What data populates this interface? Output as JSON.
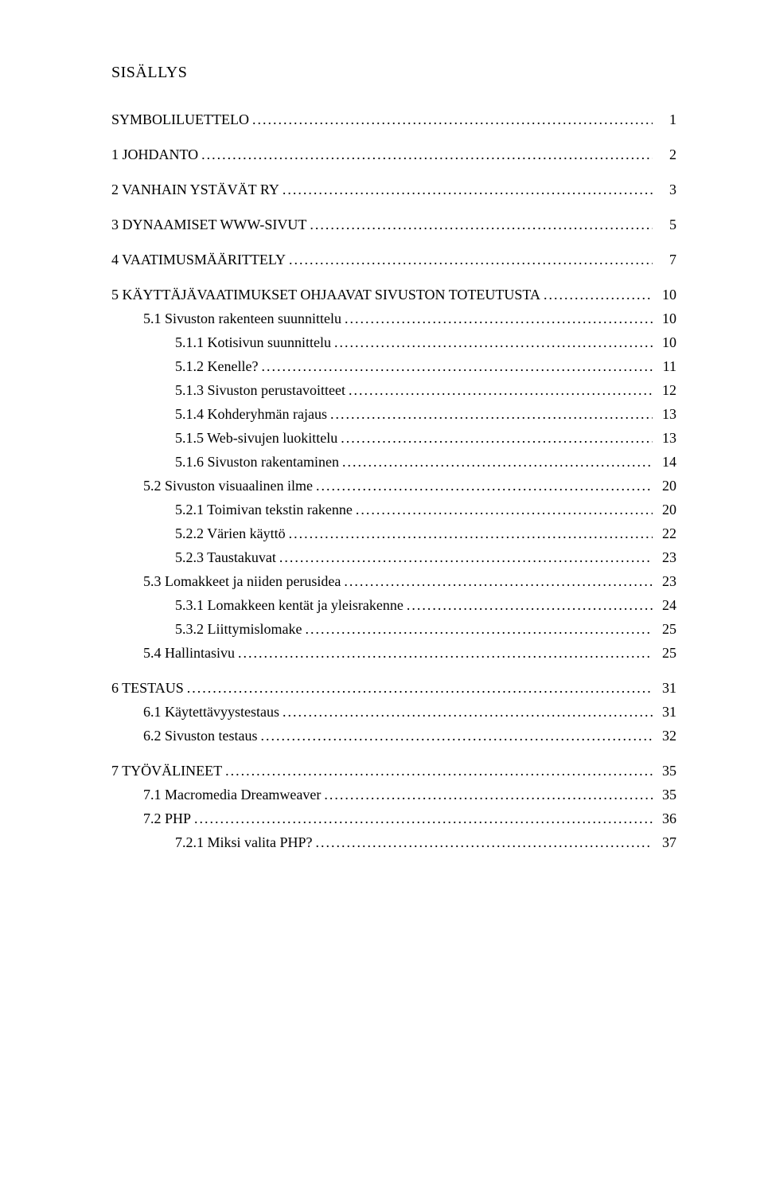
{
  "heading": "SISÄLLYS",
  "fonts": {
    "family": "Book Antiqua / Palatino",
    "heading_size_pt": 14,
    "body_size_pt": 13,
    "color": "#000000",
    "background": "#ffffff"
  },
  "toc": [
    {
      "label": "SYMBOLILUETTELO",
      "page": "1",
      "level": 1
    },
    {
      "label": "1 JOHDANTO",
      "page": "2",
      "level": 1
    },
    {
      "label": "2 VANHAIN YSTÄVÄT RY",
      "page": "3",
      "level": 1
    },
    {
      "label": "3 DYNAAMISET WWW-SIVUT",
      "page": "5",
      "level": 1
    },
    {
      "label": "4 VAATIMUSMÄÄRITTELY",
      "page": "7",
      "level": 1
    },
    {
      "label": "5 KÄYTTÄJÄVAATIMUKSET OHJAAVAT SIVUSTON TOTEUTUSTA",
      "page": "10",
      "level": 1
    },
    {
      "label": "5.1 Sivuston rakenteen suunnittelu",
      "page": "10",
      "level": 2
    },
    {
      "label": "5.1.1 Kotisivun suunnittelu",
      "page": "10",
      "level": 3
    },
    {
      "label": "5.1.2 Kenelle?",
      "page": "11",
      "level": 3
    },
    {
      "label": "5.1.3 Sivuston perustavoitteet",
      "page": "12",
      "level": 3
    },
    {
      "label": "5.1.4 Kohderyhmän rajaus",
      "page": "13",
      "level": 3
    },
    {
      "label": "5.1.5 Web-sivujen luokittelu",
      "page": "13",
      "level": 3
    },
    {
      "label": "5.1.6 Sivuston rakentaminen",
      "page": "14",
      "level": 3
    },
    {
      "label": "5.2 Sivuston visuaalinen ilme",
      "page": "20",
      "level": 2
    },
    {
      "label": "5.2.1 Toimivan tekstin rakenne",
      "page": "20",
      "level": 3
    },
    {
      "label": "5.2.2 Värien käyttö",
      "page": "22",
      "level": 3
    },
    {
      "label": "5.2.3 Taustakuvat",
      "page": "23",
      "level": 3
    },
    {
      "label": "5.3 Lomakkeet ja niiden perusidea",
      "page": "23",
      "level": 2
    },
    {
      "label": "5.3.1 Lomakkeen kentät ja yleisrakenne",
      "page": "24",
      "level": 3
    },
    {
      "label": "5.3.2 Liittymislomake",
      "page": "25",
      "level": 3
    },
    {
      "label": "5.4 Hallintasivu",
      "page": "25",
      "level": 2
    },
    {
      "label": "6 TESTAUS",
      "page": "31",
      "level": 1
    },
    {
      "label": "6.1 Käytettävyystestaus",
      "page": "31",
      "level": 2
    },
    {
      "label": "6.2 Sivuston testaus",
      "page": "32",
      "level": 2
    },
    {
      "label": "7 TYÖVÄLINEET",
      "page": "35",
      "level": 1
    },
    {
      "label": "7.1 Macromedia Dreamweaver",
      "page": "35",
      "level": 2
    },
    {
      "label": "7.2 PHP",
      "page": "36",
      "level": 2
    },
    {
      "label": "7.2.1 Miksi valita PHP?",
      "page": "37",
      "level": 3
    }
  ]
}
